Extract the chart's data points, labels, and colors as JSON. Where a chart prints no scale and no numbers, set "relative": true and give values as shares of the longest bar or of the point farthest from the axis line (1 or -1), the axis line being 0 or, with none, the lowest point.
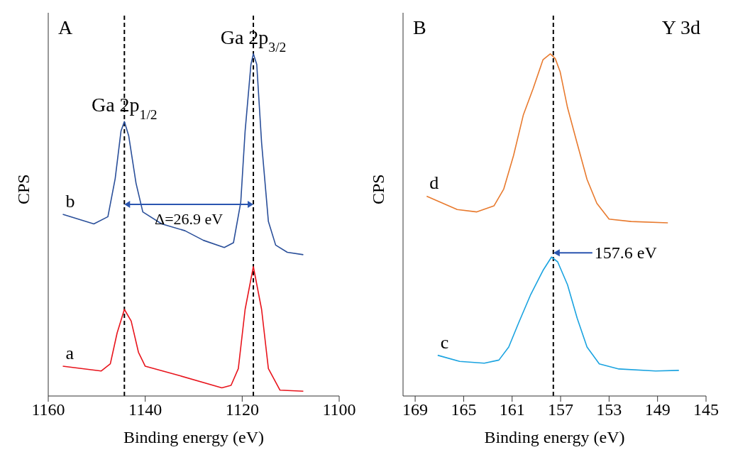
{
  "chart_data": [
    {
      "type": "line",
      "title": "A",
      "xlabel": "Binding energy (eV)",
      "ylabel": "CPS",
      "relative": true,
      "xlim": [
        1160,
        1100
      ],
      "xticks": [
        1160,
        1140,
        1120,
        1100
      ],
      "legend": false,
      "grid": false,
      "marker": "none",
      "line_style": "solid",
      "series": [
        {
          "name": "a",
          "color": "#e8141c",
          "x": [
            1157.0,
            1149.1,
            1147.2,
            1145.8,
            1144.3,
            1142.9,
            1141.4,
            1140.0,
            1132.8,
            1124.2,
            1122.3,
            1120.8,
            1119.4,
            1117.7,
            1116.0,
            1114.6,
            1112.2,
            1107.4
          ],
          "values": [
            0.087,
            0.073,
            0.094,
            0.184,
            0.253,
            0.219,
            0.128,
            0.087,
            0.059,
            0.024,
            0.031,
            0.08,
            0.253,
            0.378,
            0.253,
            0.08,
            0.017,
            0.014
          ]
        },
        {
          "name": "b",
          "color": "#2a4f9a",
          "x": [
            1157.0,
            1150.6,
            1147.7,
            1146.2,
            1145.0,
            1144.3,
            1143.4,
            1141.9,
            1140.5,
            1136.6,
            1131.8,
            1128.0,
            1123.7,
            1121.8,
            1120.3,
            1119.4,
            1118.2,
            1117.7,
            1117.0,
            1116.0,
            1114.6,
            1113.1,
            1110.7,
            1107.4
          ],
          "values": [
            0.531,
            0.503,
            0.524,
            0.635,
            0.774,
            0.802,
            0.76,
            0.622,
            0.538,
            0.503,
            0.483,
            0.455,
            0.434,
            0.448,
            0.566,
            0.774,
            0.969,
            1.0,
            0.969,
            0.74,
            0.51,
            0.441,
            0.42,
            0.413
          ]
        }
      ],
      "ref_lines": [
        {
          "axis": "x",
          "value": 1144.3,
          "color": "#000000",
          "line_style": "dashed"
        },
        {
          "axis": "x",
          "value": 1117.7,
          "color": "#000000",
          "line_style": "dashed"
        }
      ],
      "annotations": [
        {
          "text": "Ga 2p$_{1/2}$",
          "x": 1144.3,
          "y": 0.802
        },
        {
          "text": "Ga 2p$_{3/2}$",
          "x": 1117.7,
          "y": 1.0
        },
        "Δ=26.9 eV"
      ]
    },
    {
      "type": "line",
      "title": "B",
      "xlabel": "Binding energy (eV)",
      "ylabel": "CPS",
      "relative": true,
      "xlim": [
        170,
        145
      ],
      "xticks": [
        169,
        165,
        161,
        157,
        153,
        149,
        145
      ],
      "legend": false,
      "grid": false,
      "marker": "none",
      "line_style": "solid",
      "series": [
        {
          "name": "c",
          "color": "#1aa3e0",
          "x": [
            167.14,
            165.32,
            163.3,
            162.09,
            161.28,
            160.47,
            159.46,
            158.45,
            157.75,
            157.24,
            156.43,
            155.63,
            154.82,
            153.81,
            152.19,
            149.16,
            147.24
          ],
          "values": [
            0.119,
            0.101,
            0.096,
            0.105,
            0.143,
            0.213,
            0.297,
            0.367,
            0.406,
            0.392,
            0.325,
            0.227,
            0.143,
            0.094,
            0.079,
            0.073,
            0.075
          ]
        },
        {
          "name": "d",
          "color": "#e87a2e",
          "x": [
            168.05,
            165.53,
            163.91,
            162.49,
            161.69,
            160.88,
            160.07,
            159.26,
            158.45,
            157.85,
            157.44,
            157.04,
            156.43,
            155.63,
            154.82,
            154.01,
            153.0,
            151.18,
            148.15
          ],
          "values": [
            0.584,
            0.545,
            0.538,
            0.556,
            0.605,
            0.703,
            0.822,
            0.899,
            0.983,
            1.0,
            0.986,
            0.948,
            0.843,
            0.738,
            0.633,
            0.563,
            0.517,
            0.51,
            0.506
          ]
        }
      ],
      "ref_lines": [
        {
          "axis": "x",
          "value": 157.6,
          "color": "#000000",
          "line_style": "dashed"
        }
      ],
      "annotations": [
        "Y 3d",
        {
          "text": "157.6 eV",
          "x": 157.6,
          "y": 0.406
        }
      ]
    }
  ]
}
